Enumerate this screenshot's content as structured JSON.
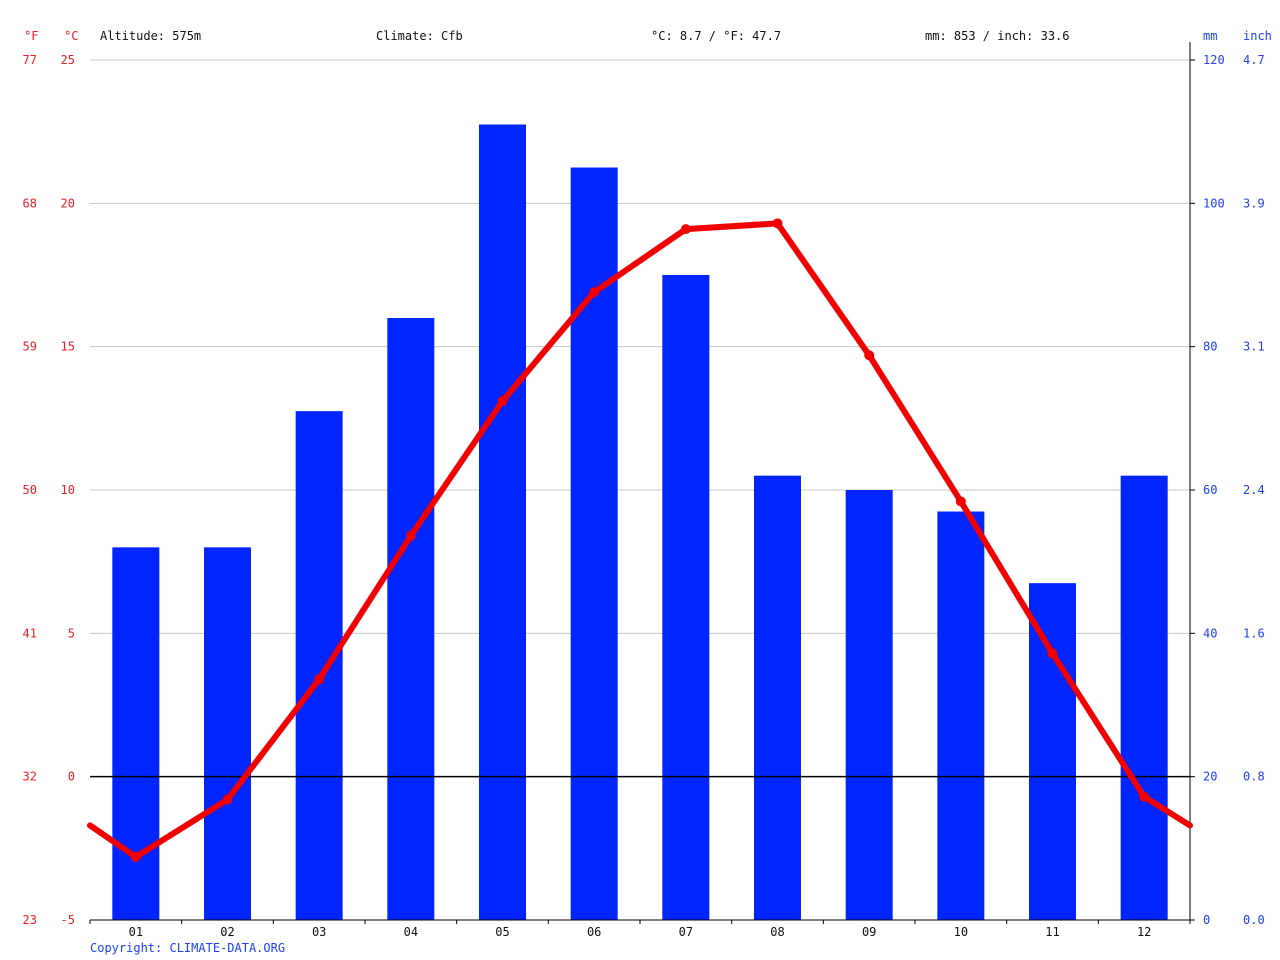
{
  "header": {
    "altitude": "Altitude: 575m",
    "climate": "Climate: Cfb",
    "temp_avg": "°C: 8.7 / °F: 47.7",
    "precip_total": "mm: 853 / inch: 33.6"
  },
  "axis_units": {
    "fahrenheit": "°F",
    "celsius": "°C",
    "mm": "mm",
    "inch": "inch"
  },
  "copyright": "Copyright: CLIMATE-DATA.ORG",
  "colors": {
    "temperature": "#f20000",
    "precipitation": "#0025ff",
    "temp_labels": "#e8202a",
    "precip_labels": "#1e40ff",
    "grid": "#c8c8c8",
    "zero_line": "#000000"
  },
  "chart_data": {
    "type": "bar",
    "categories": [
      "01",
      "02",
      "03",
      "04",
      "05",
      "06",
      "07",
      "08",
      "09",
      "10",
      "11",
      "12"
    ],
    "series": [
      {
        "axis": "precipitation_mm",
        "kind": "bar",
        "values": [
          52,
          52,
          71,
          84,
          111,
          105,
          90,
          62,
          60,
          57,
          47,
          62
        ]
      },
      {
        "axis": "temperature_c",
        "kind": "line",
        "values": [
          -2.8,
          -0.8,
          3.4,
          8.4,
          13.1,
          16.9,
          19.1,
          19.3,
          14.7,
          9.6,
          4.3,
          -0.7
        ]
      }
    ],
    "line_extension": {
      "left": -1.7,
      "right": -1.7
    },
    "left_axis_celsius": {
      "ylim": [
        -5,
        25
      ],
      "ticks": [
        "25",
        "20",
        "15",
        "10",
        "5",
        "0",
        "-5"
      ]
    },
    "left_axis_fahrenheit": {
      "ticks": [
        "77",
        "68",
        "59",
        "50",
        "41",
        "32",
        "23"
      ]
    },
    "right_axis_mm": {
      "ylim": [
        0,
        120
      ],
      "ticks": [
        "120",
        "100",
        "80",
        "60",
        "40",
        "20",
        "0"
      ]
    },
    "right_axis_inch": {
      "ticks": [
        "4.7",
        "3.9",
        "3.1",
        "2.4",
        "1.6",
        "0.8",
        "0.0"
      ]
    },
    "grid": true
  }
}
